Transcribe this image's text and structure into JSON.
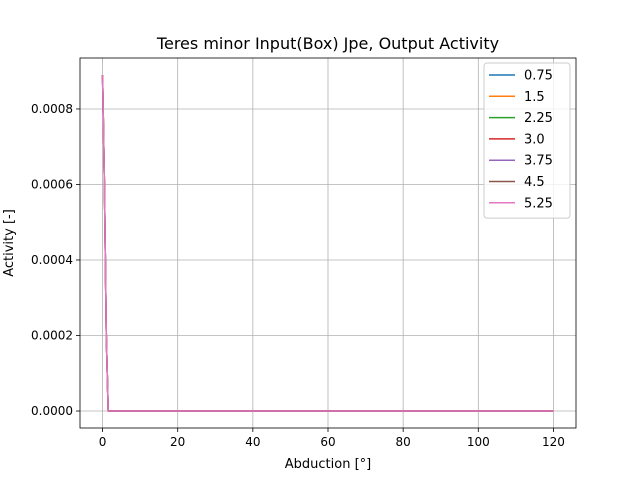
{
  "chart_data": {
    "type": "line",
    "title": "Teres minor Input(Box) Jpe, Output Activity",
    "xlabel": "Abduction [°]",
    "ylabel": "Activity [-]",
    "xlim": [
      -6,
      126
    ],
    "ylim": [
      -4.5e-05,
      0.000935
    ],
    "xticks": [
      0,
      20,
      40,
      60,
      80,
      100,
      120
    ],
    "yticks": [
      0.0,
      0.0002,
      0.0004,
      0.0006,
      0.0008
    ],
    "xtick_labels": [
      "0",
      "20",
      "40",
      "60",
      "80",
      "100",
      "120"
    ],
    "ytick_labels": [
      "0.0000",
      "0.0002",
      "0.0004",
      "0.0006",
      "0.0008"
    ],
    "grid": true,
    "legend_position": "top-right",
    "x": [
      0,
      0.5,
      1,
      1.5,
      2,
      120
    ],
    "series": [
      {
        "name": "0.75",
        "color": "#1f77b4",
        "values": [
          0.00089,
          0.0006,
          0.0002,
          0.0,
          0.0,
          0.0
        ]
      },
      {
        "name": "1.5",
        "color": "#ff7f0e",
        "values": [
          0.00089,
          0.0006,
          0.0002,
          0.0,
          0.0,
          0.0
        ]
      },
      {
        "name": "2.25",
        "color": "#2ca02c",
        "values": [
          0.00089,
          0.0006,
          0.0002,
          0.0,
          0.0,
          0.0
        ]
      },
      {
        "name": "3.0",
        "color": "#d62728",
        "values": [
          0.00089,
          0.0006,
          0.0002,
          0.0,
          0.0,
          0.0
        ]
      },
      {
        "name": "3.75",
        "color": "#9467bd",
        "values": [
          0.00089,
          0.0006,
          0.0002,
          0.0,
          0.0,
          0.0
        ]
      },
      {
        "name": "4.5",
        "color": "#8c564b",
        "values": [
          0.00089,
          0.0006,
          0.0002,
          0.0,
          0.0,
          0.0
        ]
      },
      {
        "name": "5.25",
        "color": "#e377c2",
        "values": [
          0.00089,
          0.0006,
          0.0002,
          0.0,
          0.0,
          0.0
        ]
      }
    ]
  }
}
